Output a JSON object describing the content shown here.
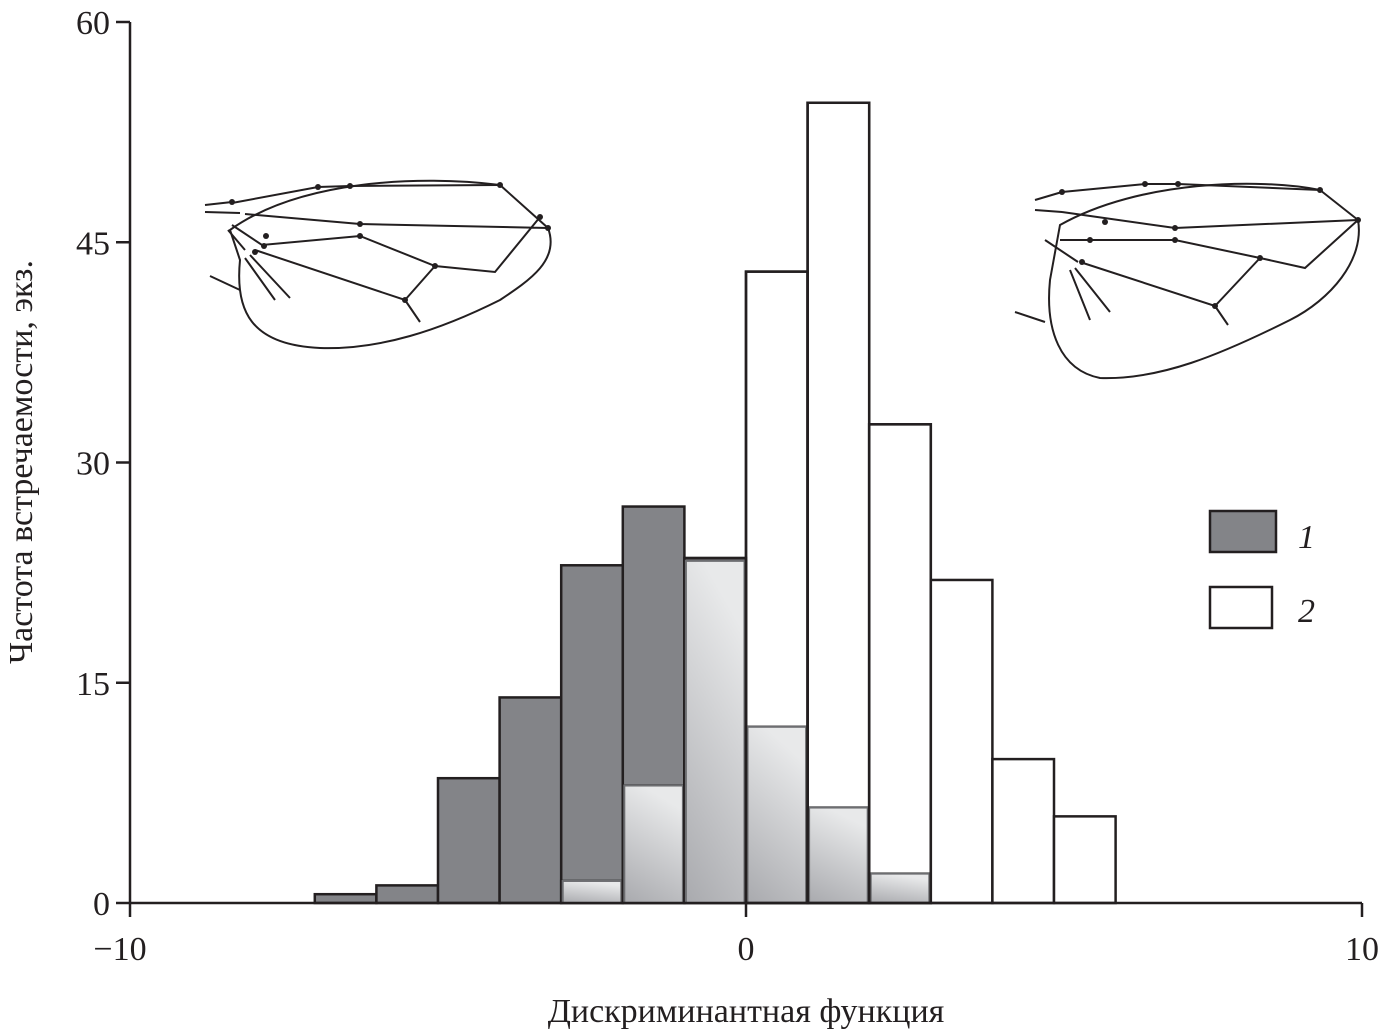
{
  "chart_data": {
    "type": "bar",
    "title": "",
    "xlabel": "Дискриминантная функция",
    "ylabel": "Частота встречаемости, экз.",
    "xlim": [
      -10,
      10
    ],
    "ylim": [
      0,
      60
    ],
    "xticks": [
      "−10",
      "0",
      "10"
    ],
    "xtick_values": [
      -10,
      0,
      10
    ],
    "yticks": [
      "0",
      "15",
      "30",
      "45",
      "60"
    ],
    "ytick_values": [
      0,
      15,
      30,
      45,
      60
    ],
    "bin_width": 1,
    "grid": false,
    "legend_position": "right",
    "series": [
      {
        "name": "1",
        "color": "#838488",
        "bin_starts": [
          -7,
          -6,
          -5,
          -4,
          -3,
          -2,
          -1,
          0,
          1,
          2
        ],
        "values": [
          0.6,
          1.2,
          8.5,
          14,
          23,
          27,
          23.5,
          12,
          6.5,
          2
        ]
      },
      {
        "name": "2",
        "color": "#ffffff",
        "bin_starts": [
          -3,
          -2,
          -1,
          0,
          1,
          2,
          3,
          4,
          5
        ],
        "values": [
          1.5,
          8,
          23.3,
          43,
          54.5,
          32.6,
          22,
          9.8,
          5.9
        ]
      }
    ],
    "overlap_color": "#c4c5c8",
    "annotations": [
      "wing drawing (left)",
      "wing drawing (right)"
    ]
  }
}
